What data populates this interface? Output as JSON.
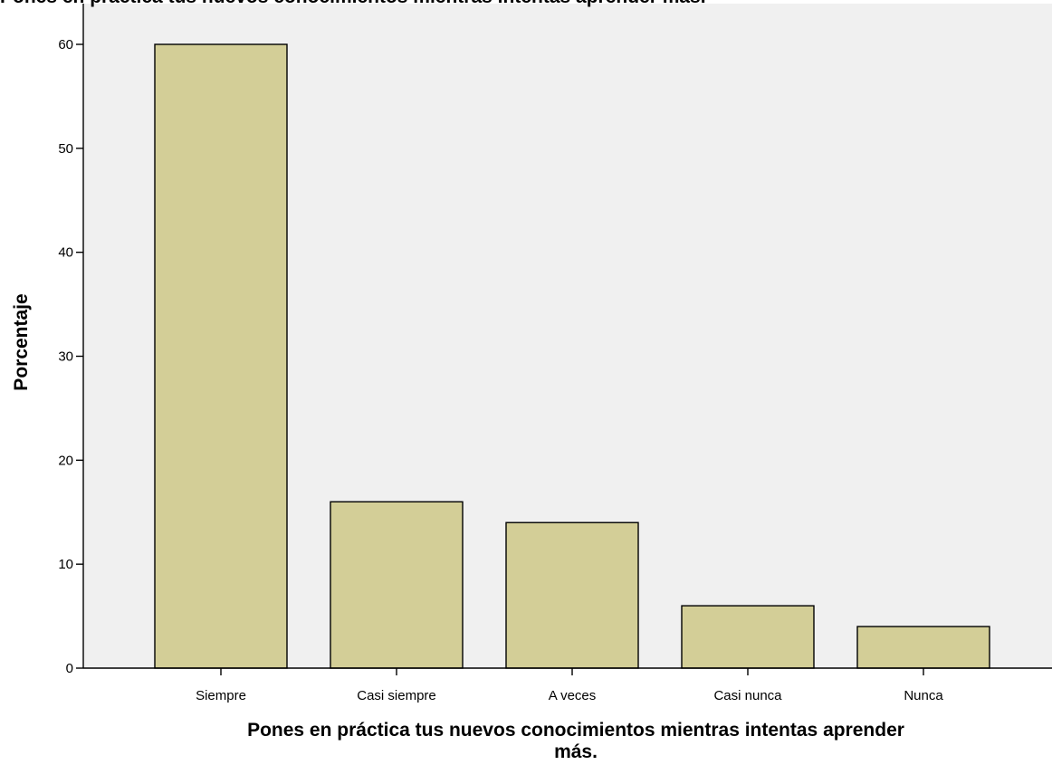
{
  "colors": {
    "plot_background": "#f0f0f0",
    "bar_fill": "#d3ce97",
    "bar_stroke": "#000000"
  },
  "chart_data": {
    "type": "bar",
    "title": "Pones en práctica tus nuevos conocimientos mientras intentas aprender más.",
    "categories": [
      "Siempre",
      "Casi siempre",
      "A veces",
      "Casi nunca",
      "Nunca"
    ],
    "values": [
      60,
      16,
      14,
      6,
      4
    ],
    "xlabel_lines": [
      "Pones en práctica tus nuevos conocimientos mientras intentas aprender",
      "más."
    ],
    "ylabel": "Porcentaje",
    "ylim": [
      0,
      60
    ],
    "yticks": [
      0,
      10,
      20,
      30,
      40,
      50,
      60
    ],
    "grid": false,
    "legend": "none"
  }
}
